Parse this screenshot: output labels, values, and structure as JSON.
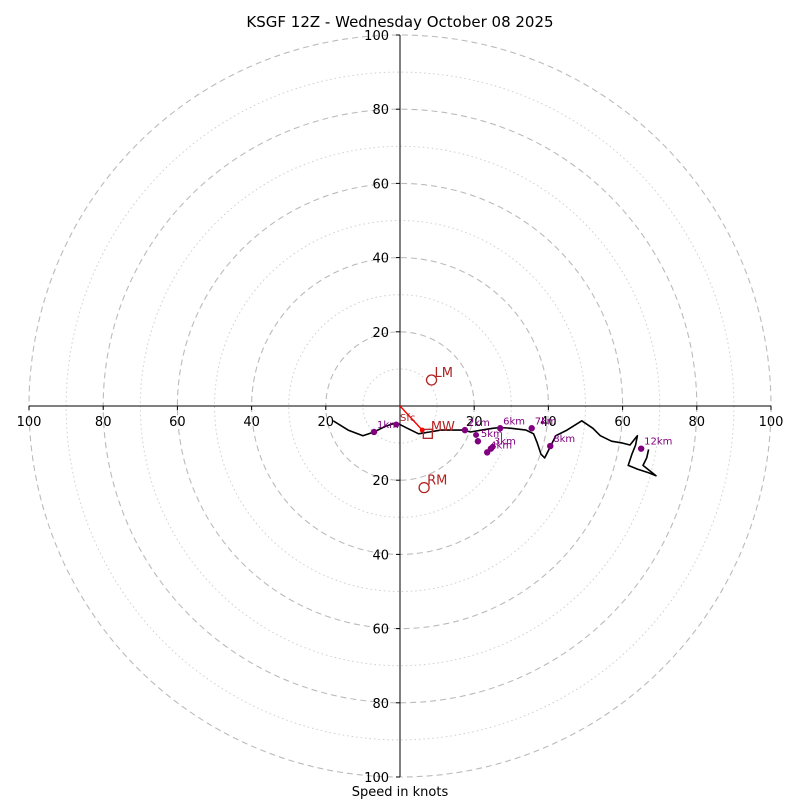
{
  "chart_data": {
    "type": "hodograph",
    "title": "KSGF 12Z - Wednesday October 08 2025",
    "xlabel": "Speed in knots",
    "xlim": [
      -100,
      100
    ],
    "ylim": [
      -100,
      100
    ],
    "rings_major": [
      20,
      40,
      60,
      80,
      100
    ],
    "rings_minor": [
      10,
      30,
      50,
      70,
      90
    ],
    "x_tick_labels": [
      "100",
      "80",
      "60",
      "40",
      "20",
      "20",
      "40",
      "60",
      "80",
      "100"
    ],
    "x_tick_values": [
      -100,
      -80,
      -60,
      -40,
      -20,
      20,
      40,
      60,
      80,
      100
    ],
    "y_tick_labels": [
      "100",
      "80",
      "60",
      "40",
      "20",
      "20",
      "40",
      "60",
      "80",
      "100"
    ],
    "y_tick_values": [
      100,
      80,
      60,
      40,
      20,
      -20,
      -40,
      -60,
      -80,
      -100
    ],
    "colors": {
      "ring": "#bbbbbb",
      "trace": "#000000",
      "height_marker": "#800080",
      "motion": "#b22222",
      "shear": "#ff0000",
      "axis": "#000000"
    },
    "trace": [
      [
        -18,
        -4
      ],
      [
        -14,
        -6.5
      ],
      [
        -10,
        -8
      ],
      [
        -7,
        -7
      ],
      [
        -4,
        -5.5
      ],
      [
        -1,
        -4.5
      ],
      [
        2,
        -6
      ],
      [
        5,
        -7.5
      ],
      [
        8,
        -7
      ],
      [
        11,
        -6.5
      ],
      [
        14,
        -6.5
      ],
      [
        17,
        -6.5
      ],
      [
        19,
        -7
      ],
      [
        22,
        -6.5
      ],
      [
        25,
        -6
      ],
      [
        27,
        -5.8
      ],
      [
        30,
        -6
      ],
      [
        34,
        -6.5
      ],
      [
        36,
        -7.5
      ],
      [
        37,
        -10
      ],
      [
        38,
        -13
      ],
      [
        39,
        -14
      ],
      [
        40,
        -12
      ],
      [
        41,
        -10
      ],
      [
        42,
        -8
      ],
      [
        45,
        -6.5
      ],
      [
        49,
        -4
      ],
      [
        52,
        -6
      ],
      [
        54,
        -8
      ],
      [
        57,
        -9.5
      ],
      [
        60,
        -10
      ],
      [
        62,
        -10.5
      ],
      [
        64,
        -8
      ],
      [
        63.5,
        -10.5
      ],
      [
        62.5,
        -13
      ],
      [
        61.5,
        -16
      ],
      [
        64,
        -17
      ],
      [
        67,
        -18
      ],
      [
        69,
        -18.8
      ],
      [
        65.5,
        -16
      ],
      [
        66.5,
        -14
      ],
      [
        67,
        -11.7
      ]
    ],
    "height_markers": [
      {
        "label": "1km",
        "u": -7,
        "v": -7
      },
      {
        "label": "2km",
        "u": 17.5,
        "v": -6.5
      },
      {
        "label": "3km",
        "u": 24.5,
        "v": -11.5
      },
      {
        "label": "4km",
        "u": 23.5,
        "v": -12.5
      },
      {
        "label": "5km",
        "u": 21,
        "v": -9.5
      },
      {
        "label": "6km",
        "u": 27,
        "v": -6
      },
      {
        "label": "7km",
        "u": 35.5,
        "v": -6
      },
      {
        "label": "8km",
        "u": 40.5,
        "v": -10.8
      },
      {
        "label": "12km",
        "u": 65,
        "v": -11.5
      }
    ],
    "surface_marker": {
      "label": "Sfc",
      "u": 0,
      "v": 0
    },
    "extra_points": [
      [
        -1,
        -5
      ],
      [
        20.5,
        -7.8
      ],
      [
        25,
        -11
      ]
    ],
    "storm_motion": [
      {
        "label": "LM",
        "u": 8.5,
        "v": 7,
        "marker": "circle"
      },
      {
        "label": "RM",
        "u": 6.5,
        "v": -22,
        "marker": "circle"
      },
      {
        "label": "MW",
        "u": 7.5,
        "v": -7.5,
        "marker": "square"
      }
    ],
    "shear_vector": {
      "from": [
        0,
        0
      ],
      "to": [
        6,
        -6.5
      ]
    }
  }
}
